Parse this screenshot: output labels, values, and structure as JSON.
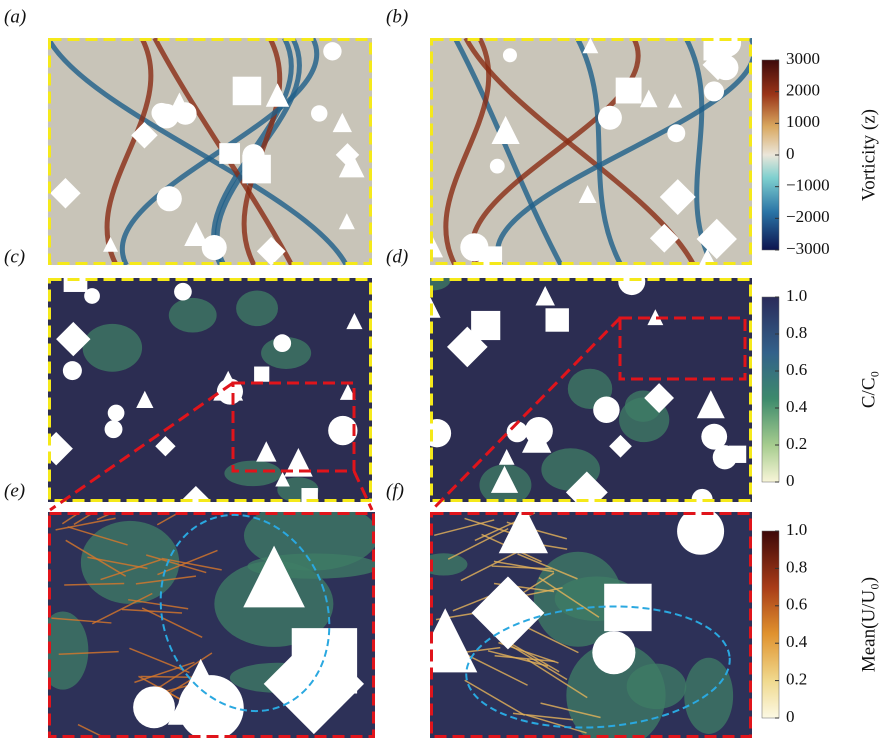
{
  "panels": [
    {
      "label": "(a)"
    },
    {
      "label": "(b)"
    },
    {
      "label": "(c)"
    },
    {
      "label": "(d)"
    },
    {
      "label": "(e)"
    },
    {
      "label": "(f)"
    }
  ],
  "colorbars": [
    {
      "label": "Vorticity (z)",
      "lim": [
        -3000,
        3000
      ],
      "ticks": [
        3000,
        2000,
        1000,
        0,
        {
          "value": -1000,
          "label": "−1000"
        },
        {
          "value": -2000,
          "label": "−2000"
        },
        {
          "value": -3000,
          "label": "−3000"
        }
      ]
    },
    {
      "label": "C/C₀",
      "lim": [
        0,
        1
      ],
      "ticks": [
        {
          "value": 1,
          "label": "1.0"
        },
        0.8,
        0.6,
        0.4,
        0.2,
        0
      ]
    },
    {
      "label": "Mean(U/U₀)",
      "lim": [
        0,
        1
      ],
      "ticks": [
        {
          "value": 1,
          "label": "1.0"
        },
        0.8,
        0.6,
        0.4,
        0.2,
        0
      ]
    }
  ]
}
